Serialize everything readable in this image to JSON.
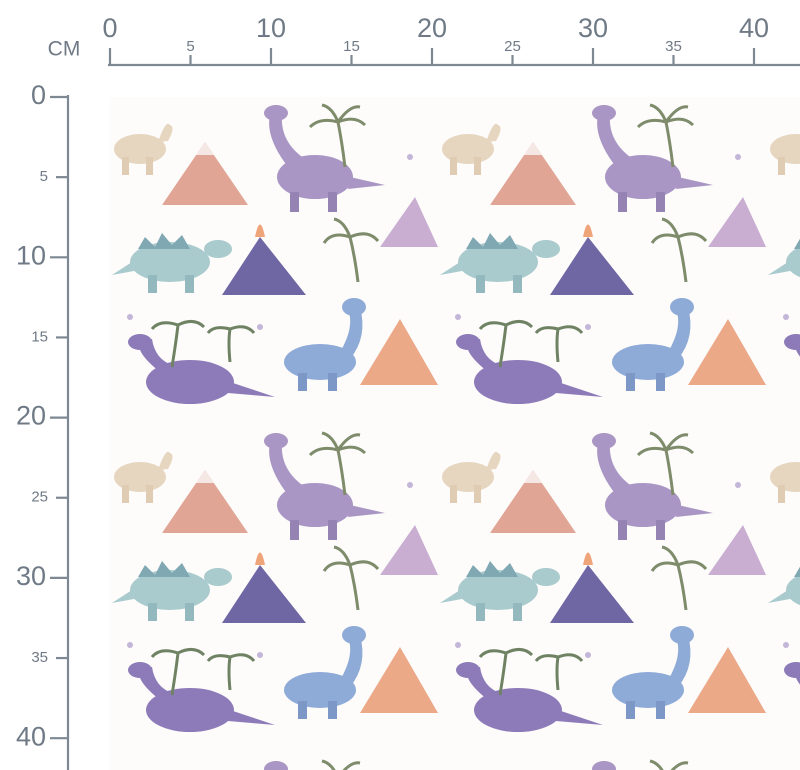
{
  "unit": "CM",
  "top_ruler": {
    "labels": [
      0,
      5,
      10,
      15,
      20,
      25,
      30,
      35,
      40
    ]
  },
  "left_ruler": {
    "labels": [
      0,
      5,
      10,
      15,
      20,
      25,
      30,
      35,
      40
    ]
  }
}
